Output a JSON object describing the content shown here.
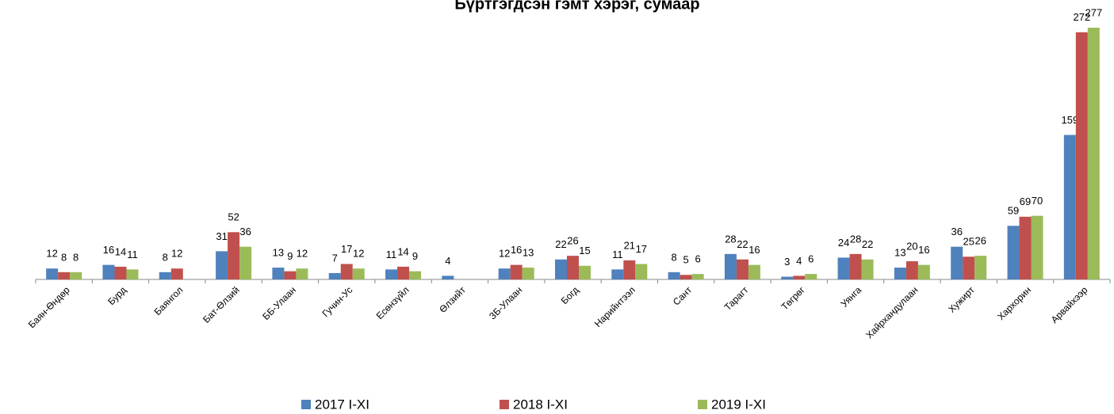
{
  "chart_data": {
    "type": "bar",
    "title": "Бүртгэгдсэн гэмт хэрэг, сумаар",
    "categories": [
      "Баян-Өндөр",
      "Бурд",
      "Баянгол",
      "Бат-Өлзий",
      "ББ-Улаан",
      "Гучин-Ус",
      "Есөнзүйл",
      "Өлзийт",
      "ЗБ-Улаан",
      "Богд",
      "Нарийнтээл",
      "Сант",
      "Тарагт",
      "Төгрөг",
      "Уянга",
      "Хайрхандулаан",
      "Хужирт",
      "Хархорин",
      "Арвайхээр"
    ],
    "series": [
      {
        "name": "2017 I-XI",
        "color": "#4f81bd",
        "values": [
          12,
          16,
          8,
          31,
          13,
          7,
          11,
          4,
          12,
          22,
          11,
          8,
          28,
          3,
          24,
          13,
          36,
          59,
          159
        ]
      },
      {
        "name": "2018 I-XI",
        "color": "#c0504d",
        "values": [
          8,
          14,
          12,
          52,
          9,
          17,
          14,
          null,
          16,
          26,
          21,
          5,
          22,
          4,
          28,
          20,
          25,
          69,
          272
        ]
      },
      {
        "name": "2019 I-XI",
        "color": "#9bbb59",
        "values": [
          8,
          11,
          null,
          36,
          12,
          12,
          9,
          null,
          13,
          15,
          17,
          6,
          16,
          6,
          22,
          16,
          26,
          70,
          277
        ]
      }
    ],
    "legend": "bottom"
  }
}
